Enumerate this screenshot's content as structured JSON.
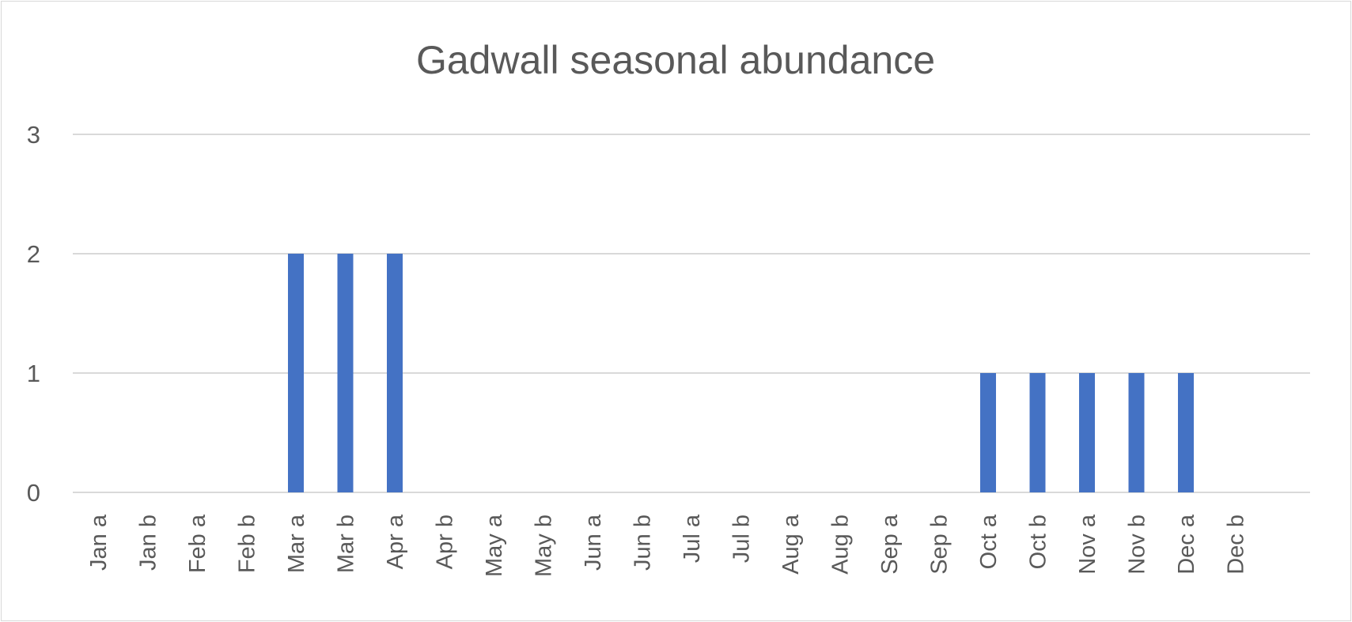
{
  "chart_data": {
    "type": "bar",
    "title": "Gadwall seasonal abundance",
    "xlabel": "",
    "ylabel": "",
    "categories": [
      "Jan a",
      "Jan b",
      "Feb a",
      "Feb b",
      "Mar a",
      "Mar b",
      "Apr a",
      "Apr b",
      "May a",
      "May b",
      "Jun a",
      "Jun b",
      "Jul a",
      "Jul b",
      "Aug a",
      "Aug b",
      "Sep a",
      "Sep b",
      "Oct a",
      "Oct b",
      "Nov a",
      "Nov b",
      "Dec a",
      "Dec b"
    ],
    "values": [
      0,
      0,
      0,
      0,
      2,
      2,
      2,
      0,
      0,
      0,
      0,
      0,
      0,
      0,
      0,
      0,
      0,
      0,
      1,
      1,
      1,
      1,
      1,
      0
    ],
    "ylim": [
      0,
      3
    ],
    "yticks": [
      "0",
      "1",
      "2",
      "3"
    ],
    "grid": true,
    "legend": "none",
    "bar_color": "#4472c4",
    "grid_color": "#d9d9d9",
    "text_color": "#595959"
  }
}
